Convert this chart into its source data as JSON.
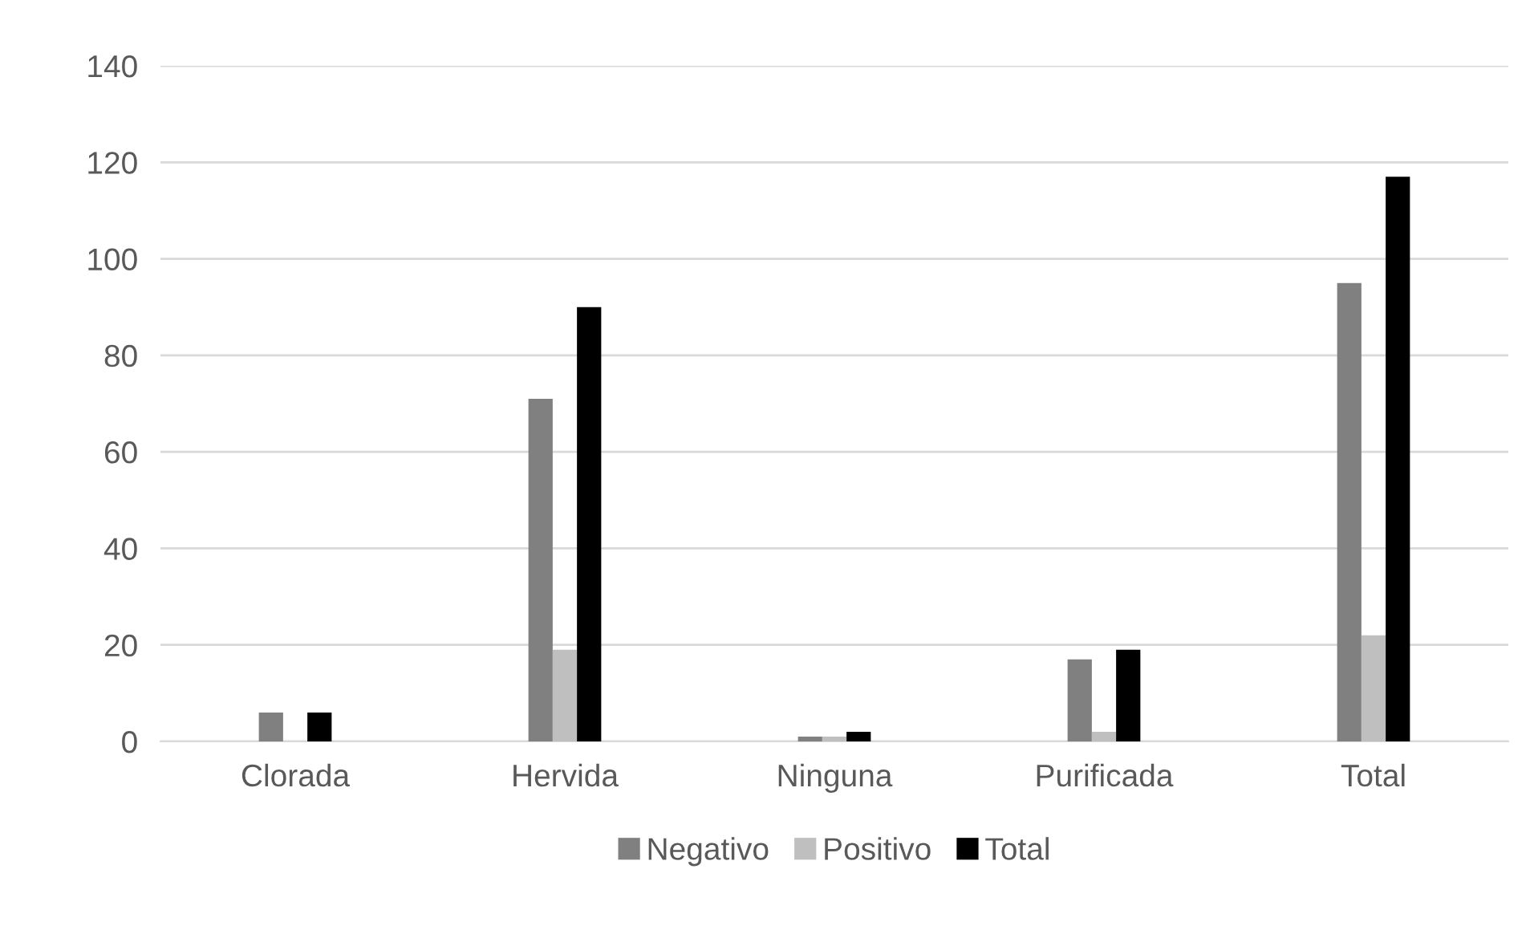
{
  "chart_data": {
    "type": "bar",
    "categories": [
      "Clorada",
      "Hervida",
      "Ninguna",
      "Purificada",
      "Total"
    ],
    "series": [
      {
        "name": "Negativo",
        "color": "#808080",
        "values": [
          6,
          71,
          1,
          17,
          95
        ]
      },
      {
        "name": "Positivo",
        "color": "#bfbfbf",
        "values": [
          0,
          19,
          1,
          2,
          22
        ]
      },
      {
        "name": "Total",
        "color": "#000000",
        "values": [
          6,
          90,
          2,
          19,
          117
        ]
      }
    ],
    "ylim": [
      0,
      140
    ],
    "yticks": [
      0,
      20,
      40,
      60,
      80,
      100,
      120,
      140
    ],
    "grid": "y",
    "legend": "bottom"
  }
}
